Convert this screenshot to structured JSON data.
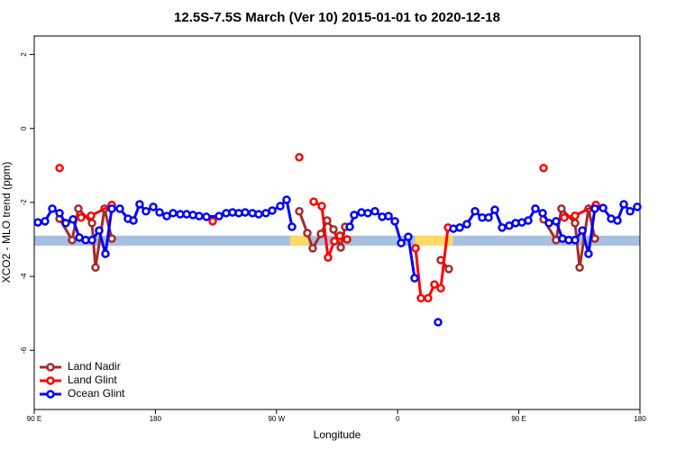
{
  "chart_data": {
    "type": "line",
    "title": "12.5S-7.5S March (Ver 10)   2015-01-01 to 2020-12-18",
    "x_label": "Longitude",
    "y_label": "XCO2 - MLO trend (ppm)",
    "xlim": [
      90,
      540
    ],
    "ylim": [
      -7.6,
      2.5
    ],
    "xticks": [
      {
        "value": 90,
        "label": "90 E"
      },
      180,
      {
        "value": 270,
        "label": "90 W"
      },
      {
        "value": 360,
        "label": "0"
      },
      {
        "value": 450,
        "label": "90 E"
      },
      {
        "value": 540,
        "label": "180"
      }
    ],
    "yticks": [
      2,
      0,
      -2,
      -4,
      -6
    ],
    "legend": "bottom-left",
    "band": {
      "ylim": [
        -3.17,
        -2.9
      ],
      "color": "#a8bfdf"
    },
    "highlights": {
      "color": "#ffd966",
      "spans": [
        [
          280,
          294
        ],
        [
          373,
          401
        ]
      ]
    },
    "series": [
      {
        "name": "Land Nadir",
        "color": "#a52a2a",
        "x": [
          108.8,
          118.1,
          122.8,
          132.9,
          135.5,
          142.2,
          147.6,
          null,
          286.9,
          292.9,
          296.9,
          303,
          307.6,
          312.3,
          317.7,
          321,
          null,
          392,
          398,
          null,
          468.4,
          477.7,
          481.7,
          491.8,
          495.2,
          501.8,
          506.5
        ],
        "values": [
          -2.44,
          -3.02,
          -2.17,
          -2.56,
          -3.76,
          -2.17,
          -2.98,
          null,
          -2.24,
          -2.83,
          -3.24,
          -2.85,
          -2.49,
          -2.73,
          -3.22,
          -2.66,
          null,
          -3.56,
          -3.8,
          null,
          -2.46,
          -3.02,
          -2.17,
          -2.56,
          -3.76,
          -2.17,
          -2.98
        ]
      },
      {
        "name": "Land Glint",
        "color": "#ff0000",
        "x": [
          108.8,
          null,
          124.8,
          132.2,
          147.6,
          null,
          222.6,
          null,
          286.9,
          null,
          297.6,
          303.6,
          308.3,
          313,
          317,
          322.4,
          null,
          373.3,
          377.3,
          382.6,
          387.3,
          392,
          397.4,
          null,
          468.4,
          null,
          483.8,
          491.8,
          507.2
        ],
        "values": [
          -1.07,
          null,
          -2.41,
          -2.36,
          -2.07,
          null,
          -2.51,
          null,
          -0.78,
          null,
          -1.98,
          -2.1,
          -3.49,
          -3.05,
          -2.9,
          -3,
          null,
          -3.24,
          -4.59,
          -4.59,
          -4.22,
          -4.32,
          -2.68,
          null,
          -1.07,
          null,
          -2.41,
          -2.36,
          -2.07
        ]
      },
      {
        "name": "Ocean Glint",
        "color": "#0000ff",
        "x": [
          92.7,
          98,
          103.4,
          108.8,
          113.4,
          118.8,
          123.5,
          128.2,
          132.9,
          138.2,
          142.9,
          147.6,
          153.6,
          159.6,
          163.7,
          168.3,
          173,
          178.4,
          183.1,
          188.4,
          193.1,
          198.5,
          203.2,
          207.9,
          212.5,
          217.9,
          227.3,
          232.6,
          237.3,
          242,
          246.7,
          252.1,
          256.7,
          262.1,
          266.8,
          272.8,
          277.5,
          281.5,
          null,
          324.4,
          327.7,
          333.1,
          337.8,
          343.1,
          348.5,
          353.2,
          357.9,
          362.6,
          367.9,
          372.6,
          null,
          390,
          null,
          401.4,
          406.1,
          411.4,
          417.5,
          422.8,
          427.5,
          432.2,
          437.6,
          442.9,
          447.6,
          452.3,
          457,
          462.3,
          467.7,
          472.4,
          477.7,
          482.4,
          487.1,
          491.8,
          497.2,
          501.8,
          506.5,
          512.6,
          518.6,
          523.3,
          528,
          532.7,
          538
        ],
        "values": [
          -2.54,
          -2.51,
          -2.17,
          -2.29,
          -2.56,
          -2.46,
          -2.95,
          -3.02,
          -3.02,
          -2.76,
          -3.39,
          -2.17,
          -2.17,
          -2.44,
          -2.49,
          -2.05,
          -2.24,
          -2.12,
          -2.27,
          -2.37,
          -2.29,
          -2.32,
          -2.32,
          -2.34,
          -2.37,
          -2.39,
          -2.37,
          -2.29,
          -2.27,
          -2.29,
          -2.27,
          -2.29,
          -2.32,
          -2.29,
          -2.22,
          -2.1,
          -1.93,
          -2.66,
          null,
          -2.66,
          -2.34,
          -2.27,
          -2.29,
          -2.24,
          -2.39,
          -2.37,
          -2.51,
          -3.1,
          -2.93,
          -4.05,
          null,
          -5.24,
          null,
          -2.71,
          -2.68,
          -2.59,
          -2.24,
          -2.41,
          -2.41,
          -2.2,
          -2.68,
          -2.63,
          -2.56,
          -2.54,
          -2.49,
          -2.17,
          -2.29,
          -2.56,
          -2.51,
          -2.98,
          -3.02,
          -3.02,
          -2.76,
          -3.39,
          -2.17,
          -2.15,
          -2.44,
          -2.49,
          -2.05,
          -2.24,
          -2.12
        ]
      }
    ]
  }
}
